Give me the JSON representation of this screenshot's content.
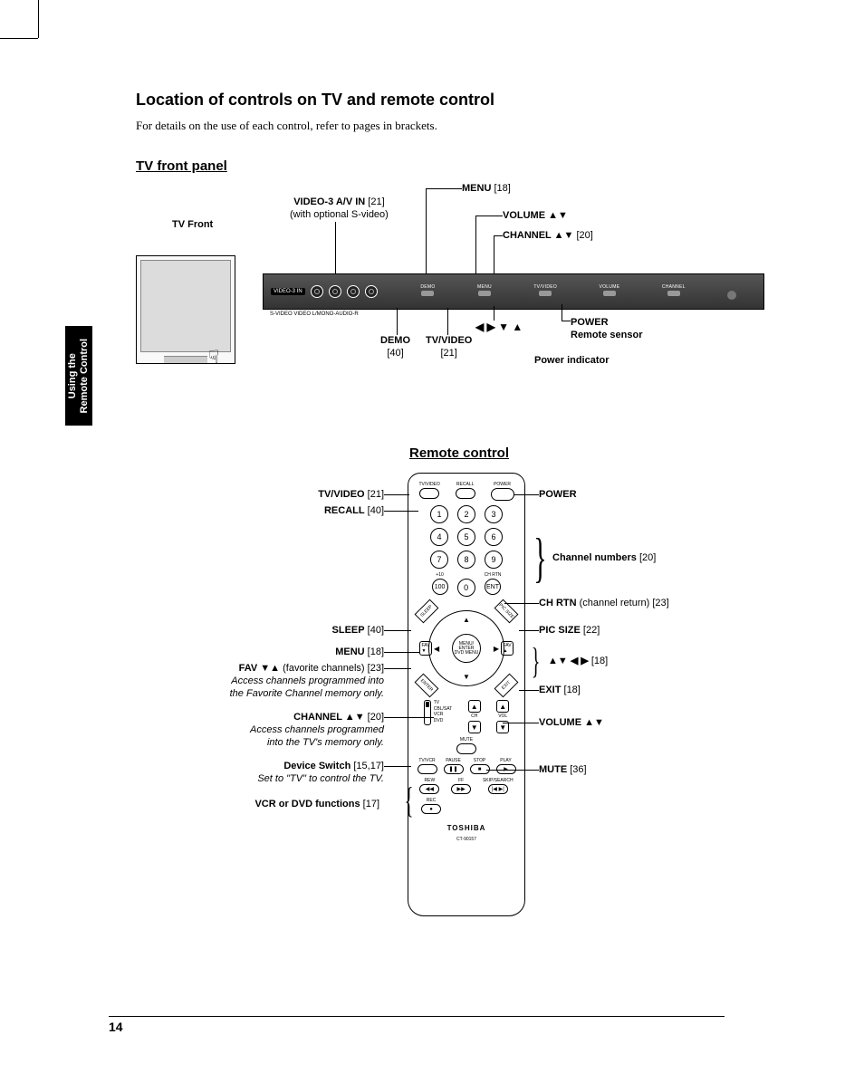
{
  "page_number": "14",
  "heading": "Location of controls on TV and remote control",
  "subtext": "For details on the use of each control, refer to pages in brackets.",
  "section1_title": "TV front panel",
  "section2_title": "Remote control",
  "side_tab_line1": "Using the",
  "side_tab_line2": "Remote Control",
  "tv": {
    "front_label": "TV Front",
    "video3_label": "VIDEO-3 A/V IN",
    "video3_page": " [21]",
    "video3_note": "(with optional S-video)",
    "bar_pill": "VIDEO-3 IN",
    "jack_labels": "S-VIDEO   VIDEO  L/MONO-AUDIO-R",
    "btn_demo": "DEMO",
    "btn_menu": "MENU",
    "btn_tvvideo": "TV/VIDEO",
    "btn_volume": "VOLUME",
    "btn_channel": "CHANNEL",
    "call_menu": "MENU",
    "call_menu_pg": " [18]",
    "call_volume": "VOLUME ▲▼",
    "call_channel": "CHANNEL ▲▼",
    "call_channel_pg": " [20]",
    "call_arrows": "◀ ▶ ▼ ▲",
    "call_power": "POWER",
    "call_sensor": "Remote sensor",
    "call_pind": "Power indicator",
    "call_demo": "DEMO",
    "call_demo_pg": "[40]",
    "call_tvvideo": "TV/VIDEO",
    "call_tvvideo_pg": "[21]",
    "hand": "☟"
  },
  "remote": {
    "top_tvvideo": "TV/VIDEO",
    "top_recall": "RECALL",
    "top_power": "POWER",
    "num1": "1",
    "num2": "2",
    "num3": "3",
    "num4": "4",
    "num5": "5",
    "num6": "6",
    "num7": "7",
    "num8": "8",
    "num9": "9",
    "num0": "0",
    "plus10": "+10",
    "hundred": "100",
    "chrtn": "CH RTN",
    "ent": "ENT",
    "corner_sleep": "SLEEP",
    "corner_picsize": "PIC SIZE",
    "corner_enter": "ENTER",
    "corner_exit": "EXIT",
    "center": "MENU/\nENTER\nDVD MENU",
    "fav_down": "FAV\n▼",
    "fav_up": "FAV\n▲",
    "ch_label": "CH",
    "vol_label": "VOL",
    "mute": "MUTE",
    "sw_tv": "TV",
    "sw_cbl": "CBL/SAT",
    "sw_vcr": "VCR",
    "sw_dvd": "DVD",
    "m_tvvcr": "TV/VCR",
    "m_pause": "PAUSE",
    "m_stop": "STOP",
    "m_play": "PLAY",
    "m_rew": "REW",
    "m_ff": "FF",
    "m_skip": "SKIP/SEARCH",
    "m_rec": "REC",
    "brand": "TOSHIBA",
    "model": "CT-90157",
    "sym_pause": "❚❚",
    "sym_stop": "■",
    "sym_play": "▶",
    "sym_rew": "◀◀",
    "sym_ff": "▶▶",
    "sym_skip_l": "|◀",
    "sym_skip_r": "▶|",
    "sym_rec": "●"
  },
  "rc_calls": {
    "tvvideo": "TV/VIDEO",
    "tvvideo_pg": " [21]",
    "recall": "RECALL",
    "recall_pg": " [40]",
    "sleep": "SLEEP",
    "sleep_pg": " [40]",
    "menu": "MENU",
    "menu_pg": " [18]",
    "fav": "FAV ▼▲",
    "fav_note": "  (favorite channels) [23]",
    "fav_i1": "Access channels programmed into",
    "fav_i2": "the Favorite Channel memory only.",
    "channel": "CHANNEL ▲▼",
    "channel_pg": " [20]",
    "ch_i1": "Access channels programmed",
    "ch_i2": "into the TV's memory only.",
    "devsw": "Device Switch",
    "devsw_pg": " [15,17]",
    "devsw_i": "Set to \"TV\" to control the TV.",
    "vcrdvd": "VCR or DVD functions",
    "vcrdvd_pg": " [17]",
    "power": "POWER",
    "chnum": "Channel numbers",
    "chnum_pg": " [20]",
    "chrtn": "CH RTN",
    "chrtn_note": " (channel return) [23]",
    "picsize": "PIC SIZE",
    "picsize_pg": " [22]",
    "arrows": "▲▼ ◀ ▶ ",
    "arrows_pg": " [18]",
    "exit": "EXIT",
    "exit_pg": " [18]",
    "volume": "VOLUME ▲▼",
    "mute": "MUTE",
    "mute_pg": " [36]"
  }
}
